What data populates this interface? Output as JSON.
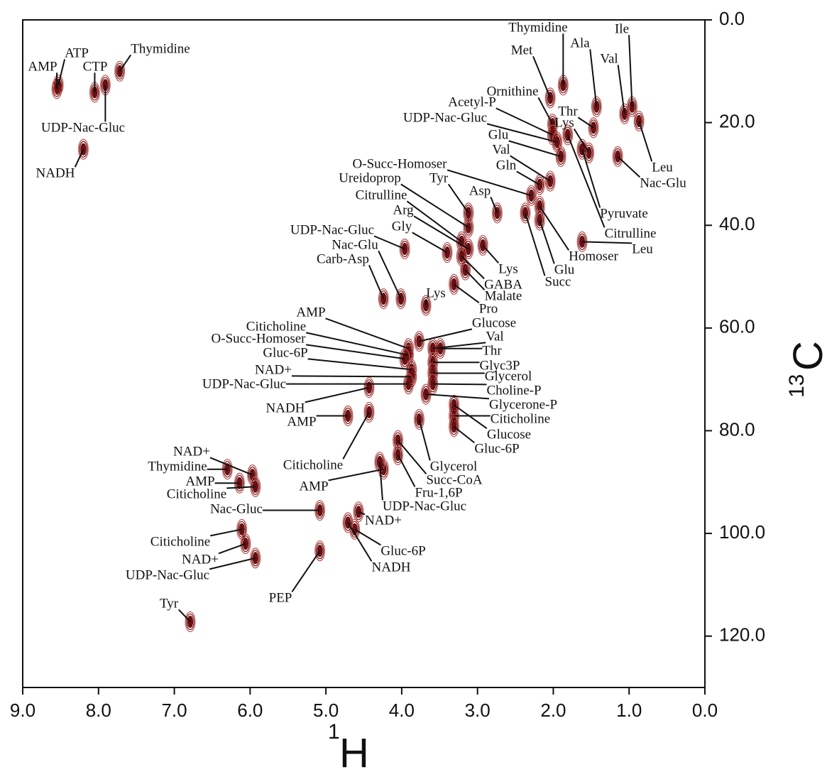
{
  "chart_data": {
    "type": "hsqc",
    "xlabel_sup": "1",
    "xlabel": "H",
    "ylabel_sup": "13",
    "ylabel": "C",
    "xlim": [
      9.0,
      0.0
    ],
    "xticks": [
      {
        "value": 9,
        "label": "9.0"
      },
      {
        "value": 8,
        "label": "8.0"
      },
      {
        "value": 7,
        "label": "7.0"
      },
      {
        "value": 6,
        "label": "6.0"
      },
      {
        "value": 5,
        "label": "5.0"
      },
      {
        "value": 4,
        "label": "4.0"
      },
      {
        "value": 3,
        "label": "3.0"
      },
      {
        "value": 2,
        "label": "2.0"
      },
      {
        "value": 1,
        "label": "1.0"
      },
      {
        "value": 0,
        "label": "0.0"
      }
    ],
    "ylim": [
      0,
      130
    ],
    "yticks": [
      {
        "value": 0,
        "label": "0.0"
      },
      {
        "value": 20,
        "label": "20.0"
      },
      {
        "value": 40,
        "label": "40.0"
      },
      {
        "value": 60,
        "label": "60.0"
      },
      {
        "value": 80,
        "label": "80.0"
      },
      {
        "value": 100,
        "label": "100.0"
      },
      {
        "value": 120,
        "label": "120.0"
      }
    ],
    "color": "#6b0f12",
    "annotations": [
      {
        "text": "AMP",
        "x": 8.55,
        "y": 13.4
      },
      {
        "text": "ATP",
        "x": 8.53,
        "y": 12.7
      },
      {
        "text": "CTP",
        "x": 8.05,
        "y": 14.1
      },
      {
        "text": "Thymidine",
        "x": 7.72,
        "y": 10.0
      },
      {
        "text": "UDP-Nac-Gluc",
        "x": 7.91,
        "y": 12.7
      },
      {
        "text": "NADH",
        "x": 8.2,
        "y": 25.2
      },
      {
        "text": "Thymidine",
        "x": 1.87,
        "y": 12.7
      },
      {
        "text": "Met",
        "x": 2.04,
        "y": 15.2
      },
      {
        "text": "Ala",
        "x": 1.43,
        "y": 16.9
      },
      {
        "text": "Ile",
        "x": 0.96,
        "y": 16.9
      },
      {
        "text": "Val",
        "x": 1.06,
        "y": 18.3
      },
      {
        "text": "Ornithine",
        "x": 2.01,
        "y": 20.3
      },
      {
        "text": "Acetyl-P",
        "x": 2.01,
        "y": 22.4
      },
      {
        "text": "Thr",
        "x": 1.47,
        "y": 21.0
      },
      {
        "text": "UDP-Nac-Gluc",
        "x": 1.95,
        "y": 23.8
      },
      {
        "text": "Lys",
        "x": 1.53,
        "y": 25.9
      },
      {
        "text": "Leu",
        "x": 0.87,
        "y": 19.7
      },
      {
        "text": "Glu",
        "x": 1.9,
        "y": 26.6
      },
      {
        "text": "Val",
        "x": 2.04,
        "y": 31.4
      },
      {
        "text": "Gln",
        "x": 2.18,
        "y": 32.1
      },
      {
        "text": "O-Succ-Homoser",
        "x": 2.29,
        "y": 34.2
      },
      {
        "text": "Nac-Glu",
        "x": 1.15,
        "y": 26.6
      },
      {
        "text": "Ureidoprop",
        "x": 3.12,
        "y": 40.4
      },
      {
        "text": "Tyr",
        "x": 3.12,
        "y": 37.6
      },
      {
        "text": "Asp",
        "x": 2.74,
        "y": 37.6
      },
      {
        "text": "Pyruvate",
        "x": 1.62,
        "y": 25.2
      },
      {
        "text": "Citrulline",
        "x": 3.21,
        "y": 43.2
      },
      {
        "text": "Citrulline",
        "x": 1.81,
        "y": 22.4
      },
      {
        "text": "Arg",
        "x": 3.12,
        "y": 44.6
      },
      {
        "text": "Gly",
        "x": 3.4,
        "y": 45.3
      },
      {
        "text": "UDP-Nac-Gluc",
        "x": 3.96,
        "y": 44.6
      },
      {
        "text": "Leu",
        "x": 1.62,
        "y": 43.2
      },
      {
        "text": "Homoser",
        "x": 2.18,
        "y": 36.3
      },
      {
        "text": "Nac-Glu",
        "x": 4.01,
        "y": 54.3
      },
      {
        "text": "Glu",
        "x": 2.18,
        "y": 39.0
      },
      {
        "text": "Carb-Asp",
        "x": 4.24,
        "y": 54.3
      },
      {
        "text": "Lys",
        "x": 2.93,
        "y": 43.9
      },
      {
        "text": "Succ",
        "x": 2.37,
        "y": 37.6
      },
      {
        "text": "GABA",
        "x": 3.21,
        "y": 46.0
      },
      {
        "text": "Lys",
        "x": 3.68,
        "y": 55.6
      },
      {
        "text": "Malate",
        "x": 3.16,
        "y": 48.7
      },
      {
        "text": "Pro",
        "x": 3.31,
        "y": 51.5
      },
      {
        "text": "AMP",
        "x": 3.91,
        "y": 64.0
      },
      {
        "text": "Glucose",
        "x": 3.77,
        "y": 62.6
      },
      {
        "text": "Citicholine",
        "x": 3.91,
        "y": 65.3
      },
      {
        "text": "Val",
        "x": 3.59,
        "y": 64.0
      },
      {
        "text": "O-Succ-Homoser",
        "x": 3.96,
        "y": 66.0
      },
      {
        "text": "Thr",
        "x": 3.49,
        "y": 64.0
      },
      {
        "text": "Gluc-6P",
        "x": 3.87,
        "y": 68.1
      },
      {
        "text": "Glyc3P",
        "x": 3.59,
        "y": 66.7
      },
      {
        "text": "NAD+",
        "x": 3.87,
        "y": 69.5
      },
      {
        "text": "Glycerol",
        "x": 3.59,
        "y": 68.8
      },
      {
        "text": "UDP-Nac-Gluc",
        "x": 3.91,
        "y": 70.9
      },
      {
        "text": "Choline-P",
        "x": 3.59,
        "y": 70.9
      },
      {
        "text": "Glycerone-P",
        "x": 3.68,
        "y": 72.9
      },
      {
        "text": "NADH",
        "x": 4.43,
        "y": 71.6
      },
      {
        "text": "AMP",
        "x": 4.71,
        "y": 77.1
      },
      {
        "text": "Citicholine",
        "x": 3.31,
        "y": 77.1
      },
      {
        "text": "Glucose",
        "x": 3.31,
        "y": 75.0
      },
      {
        "text": "Gluc-6P",
        "x": 3.31,
        "y": 79.2
      },
      {
        "text": "Citicholine",
        "x": 4.43,
        "y": 76.4
      },
      {
        "text": "Glycerol",
        "x": 3.77,
        "y": 77.8
      },
      {
        "text": "Succ-CoA",
        "x": 4.05,
        "y": 81.9
      },
      {
        "text": "Fru-1,6P",
        "x": 4.05,
        "y": 84.7
      },
      {
        "text": "AMP",
        "x": 4.24,
        "y": 87.5
      },
      {
        "text": "UDP-Nac-Gluc",
        "x": 4.29,
        "y": 86.1
      },
      {
        "text": "NAD+",
        "x": 4.57,
        "y": 95.8
      },
      {
        "text": "Gluc-6P",
        "x": 4.62,
        "y": 99.2
      },
      {
        "text": "NADH",
        "x": 4.71,
        "y": 97.9
      },
      {
        "text": "NAD+",
        "x": 5.97,
        "y": 88.6
      },
      {
        "text": "Thymidine",
        "x": 6.3,
        "y": 87.5
      },
      {
        "text": "AMP",
        "x": 6.14,
        "y": 90.2
      },
      {
        "text": "Citicholine",
        "x": 5.93,
        "y": 90.9
      },
      {
        "text": "Nac-Gluc",
        "x": 5.08,
        "y": 95.5
      },
      {
        "text": "Citicholine",
        "x": 6.11,
        "y": 99.2
      },
      {
        "text": "NAD+",
        "x": 6.06,
        "y": 102.0
      },
      {
        "text": "UDP-Nac-Gluc",
        "x": 5.93,
        "y": 104.8
      },
      {
        "text": "PEP",
        "x": 5.08,
        "y": 103.4
      },
      {
        "text": "Tyr",
        "x": 6.79,
        "y": 117.2
      }
    ]
  }
}
